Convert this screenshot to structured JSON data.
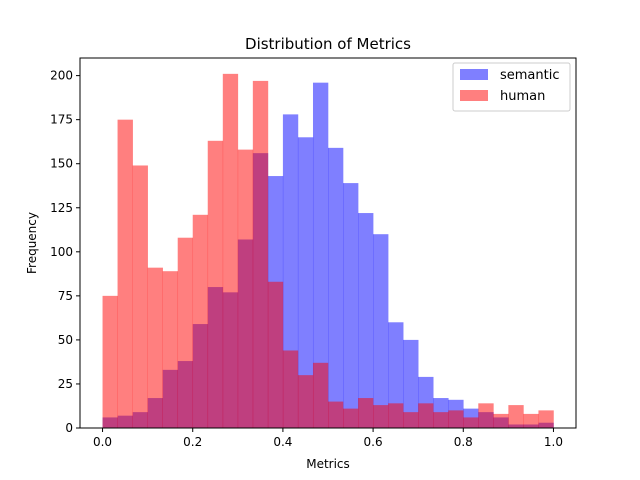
{
  "chart_data": {
    "type": "bar",
    "title": "Distribution of Metrics",
    "xlabel": "Metrics",
    "ylabel": "Frequency",
    "xlim": [
      -0.05,
      1.05
    ],
    "ylim": [
      0,
      210
    ],
    "x_ticks": [
      "0.0",
      "0.2",
      "0.4",
      "0.6",
      "0.8",
      "1.0"
    ],
    "y_ticks": [
      "0",
      "25",
      "50",
      "75",
      "100",
      "125",
      "150",
      "175",
      "200"
    ],
    "bin_edges": [
      0.0,
      0.0333,
      0.0667,
      0.1,
      0.1333,
      0.1667,
      0.2,
      0.2333,
      0.2667,
      0.3,
      0.3333,
      0.3667,
      0.4,
      0.4333,
      0.4667,
      0.5,
      0.5333,
      0.5667,
      0.6,
      0.6333,
      0.6667,
      0.7,
      0.7333,
      0.7667,
      0.8,
      0.8333,
      0.8667,
      0.9,
      0.9333,
      0.9667,
      1.0
    ],
    "legend_position": "top-right",
    "series": [
      {
        "name": "semantic",
        "color": "#0000ff",
        "alpha": 0.5,
        "values": [
          6,
          7,
          9,
          17,
          33,
          38,
          59,
          80,
          77,
          107,
          156,
          143,
          178,
          165,
          196,
          159,
          139,
          122,
          110,
          60,
          50,
          29,
          17,
          16,
          11,
          9,
          6,
          2,
          2,
          3
        ]
      },
      {
        "name": "human",
        "color": "#ff0000",
        "alpha": 0.5,
        "values": [
          75,
          175,
          149,
          91,
          89,
          108,
          121,
          163,
          201,
          158,
          197,
          83,
          44,
          30,
          37,
          15,
          11,
          17,
          13,
          14,
          9,
          14,
          9,
          10,
          6,
          14,
          8,
          13,
          8,
          10
        ]
      }
    ]
  }
}
